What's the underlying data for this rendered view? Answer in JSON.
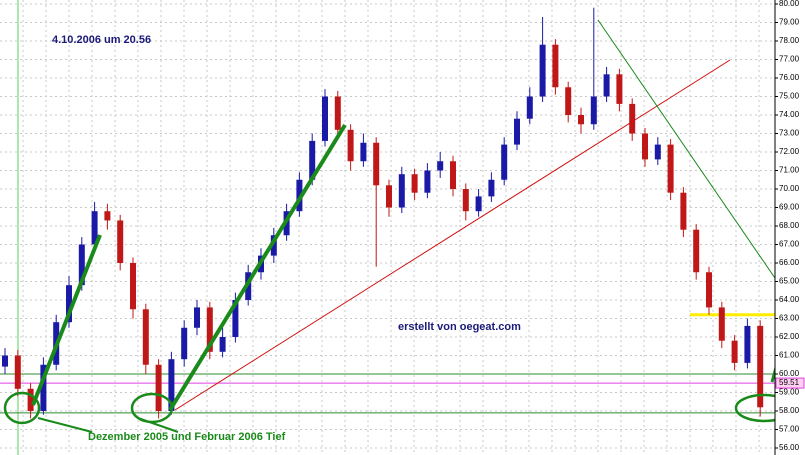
{
  "chart_data": {
    "type": "candlestick",
    "title": "4.10.2006 um 20.56",
    "annotations": [
      "erstellt von oegeat.com",
      "Dezember 2005 und Februar 2006 Tief"
    ],
    "up_color": "#1a1aa6",
    "down_color": "#c01818",
    "open": [
      60.4,
      61.0,
      59.2,
      58.0,
      60.5,
      62.8,
      64.8,
      67.0,
      68.8,
      68.3,
      66.0,
      63.5,
      60.5,
      58.0,
      60.8,
      62.5,
      63.6,
      61.2,
      62.0,
      64.0,
      65.5,
      66.4,
      67.5,
      68.8,
      70.5,
      72.6,
      75.0,
      73.2,
      71.5,
      72.5,
      70.2,
      69.0,
      70.8,
      69.8,
      71.0,
      71.5,
      70.0,
      68.8,
      69.6,
      70.5,
      72.4,
      73.8,
      75.0,
      77.8,
      75.5,
      74.0,
      73.5,
      75.0,
      76.2,
      74.6,
      73.0,
      71.6,
      72.4,
      69.8,
      67.8,
      65.5,
      63.6,
      61.8,
      60.6,
      62.6
    ],
    "high": [
      61.4,
      61.3,
      59.5,
      60.9,
      63.2,
      65.3,
      67.4,
      69.3,
      69.2,
      68.6,
      66.3,
      63.8,
      60.8,
      61.2,
      62.9,
      64.0,
      63.9,
      62.5,
      64.4,
      65.9,
      66.8,
      67.9,
      69.2,
      70.9,
      73.0,
      75.4,
      75.3,
      73.5,
      73.0,
      72.8,
      70.5,
      71.2,
      71.1,
      71.4,
      72.0,
      71.8,
      70.3,
      70.0,
      70.9,
      72.8,
      74.2,
      75.5,
      79.3,
      78.1,
      75.8,
      74.4,
      79.8,
      76.6,
      76.5,
      74.9,
      73.3,
      72.8,
      72.7,
      70.1,
      68.1,
      65.8,
      63.9,
      62.1,
      63.0,
      62.9
    ],
    "low": [
      60.0,
      58.8,
      57.6,
      57.8,
      60.2,
      62.5,
      64.5,
      66.7,
      67.8,
      65.6,
      63.0,
      60.0,
      57.6,
      57.8,
      60.4,
      62.1,
      60.8,
      60.9,
      61.7,
      63.7,
      65.1,
      66.0,
      67.2,
      68.5,
      70.2,
      72.3,
      72.8,
      71.0,
      71.2,
      65.8,
      68.5,
      68.7,
      69.4,
      69.5,
      70.6,
      69.6,
      68.3,
      68.5,
      69.3,
      70.2,
      72.1,
      73.5,
      74.7,
      75.1,
      73.6,
      73.0,
      73.2,
      74.7,
      74.2,
      72.6,
      71.2,
      71.3,
      69.4,
      67.4,
      65.1,
      63.2,
      61.4,
      60.2,
      60.3,
      57.7
    ],
    "close": [
      61.0,
      59.2,
      58.0,
      60.5,
      62.8,
      64.8,
      67.0,
      68.8,
      68.3,
      66.0,
      63.5,
      60.5,
      58.0,
      60.8,
      62.5,
      63.6,
      61.2,
      62.0,
      64.0,
      65.5,
      66.4,
      67.5,
      68.8,
      70.5,
      72.6,
      75.0,
      73.2,
      71.5,
      72.5,
      70.2,
      69.0,
      70.8,
      69.8,
      71.0,
      71.5,
      70.0,
      68.8,
      69.6,
      70.5,
      72.4,
      73.8,
      75.0,
      77.8,
      75.5,
      74.0,
      73.5,
      75.0,
      76.2,
      74.6,
      73.0,
      71.6,
      72.4,
      69.8,
      67.8,
      65.5,
      63.6,
      61.8,
      60.6,
      62.6,
      58.2
    ],
    "ylim": [
      56,
      80
    ],
    "yticks": [
      {
        "value": 56,
        "label": "56.00"
      },
      {
        "value": 57,
        "label": "57.00"
      },
      {
        "value": 58,
        "label": "58.00"
      },
      {
        "value": 59,
        "label": "59.00"
      },
      {
        "value": 60,
        "label": "60.00"
      },
      {
        "value": 61,
        "label": "61.00"
      },
      {
        "value": 62,
        "label": "62.00"
      },
      {
        "value": 63,
        "label": "63.00"
      },
      {
        "value": 64,
        "label": "64.00"
      },
      {
        "value": 65,
        "label": "65.00"
      },
      {
        "value": 66,
        "label": "66.00"
      },
      {
        "value": 67,
        "label": "67.00"
      },
      {
        "value": 68,
        "label": "68.00"
      },
      {
        "value": 69,
        "label": "69.00"
      },
      {
        "value": 70,
        "label": "70.00"
      },
      {
        "value": 71,
        "label": "71.00"
      },
      {
        "value": 72,
        "label": "72.00"
      },
      {
        "value": 73,
        "label": "73.00"
      },
      {
        "value": 74,
        "label": "74.00"
      },
      {
        "value": 75,
        "label": "75.00"
      },
      {
        "value": 76,
        "label": "76.00"
      },
      {
        "value": 77,
        "label": "77.00"
      },
      {
        "value": 78,
        "label": "78.00"
      },
      {
        "value": 79,
        "label": "79.00"
      },
      {
        "value": 80,
        "label": "80.00"
      }
    ],
    "grid": true,
    "price_marker": 59.51,
    "price_marker_color": "#e040e0",
    "levels": [
      {
        "value": 60.0,
        "color": "#2e8b2e"
      },
      {
        "value": 57.9,
        "color": "#2e8b2e"
      },
      {
        "value": 63.2,
        "color": "#ffee00"
      }
    ]
  }
}
